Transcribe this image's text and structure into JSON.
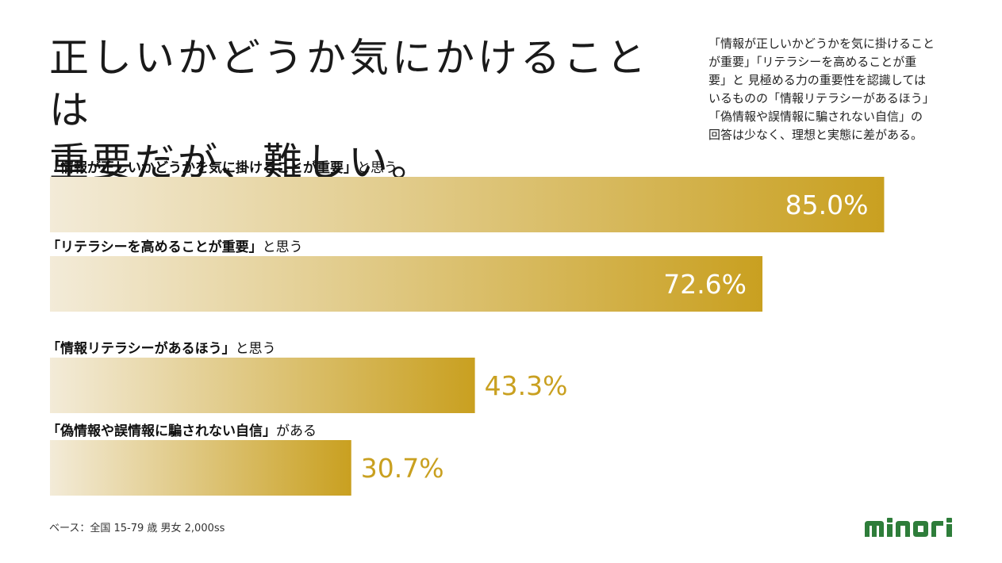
{
  "title": {
    "line1": "正しいかどうか気にかけることは",
    "line2": "重要だが、難しい。"
  },
  "note": {
    "lines": [
      "「情報が正しいかどうかを気に掛けること",
      "が重要」「リテラシーを高めることが重",
      "要」と 見極める力の重要性を認識しては",
      "いるものの「情報リテラシーがあるほう」",
      "「偽情報や誤情報に騙されない自信」の",
      "回答は少なく、理想と実態に差がある。"
    ]
  },
  "chart_data": {
    "type": "bar",
    "orientation": "horizontal",
    "categories": [
      {
        "emphasis": "「情報が正しいかどうかを気に掛けることが重要」",
        "suffix": "と思う"
      },
      {
        "emphasis": "「リテラシーを高めることが重要」",
        "suffix": "と思う"
      },
      {
        "emphasis": "「情報リテラシーがあるほう」",
        "suffix": "と思う"
      },
      {
        "emphasis": "「偽情報や誤情報に騙されない自信」",
        "suffix": "がある"
      }
    ],
    "values": [
      85.0,
      72.6,
      43.3,
      30.7
    ],
    "value_labels": [
      "85.0%",
      "72.6%",
      "43.3%",
      "30.7%"
    ],
    "xlim": [
      0,
      100
    ],
    "colors": {
      "gradient_start": "#f3ebd8",
      "gradient_end": "#c9a020",
      "label_outside": "#c9a020",
      "label_inside": "#ffffff"
    }
  },
  "footer": {
    "base": "ベース：全国 15-79 歳 男女 2,000ss"
  },
  "logo": {
    "text": "minori",
    "color": "#2e7d3a"
  }
}
